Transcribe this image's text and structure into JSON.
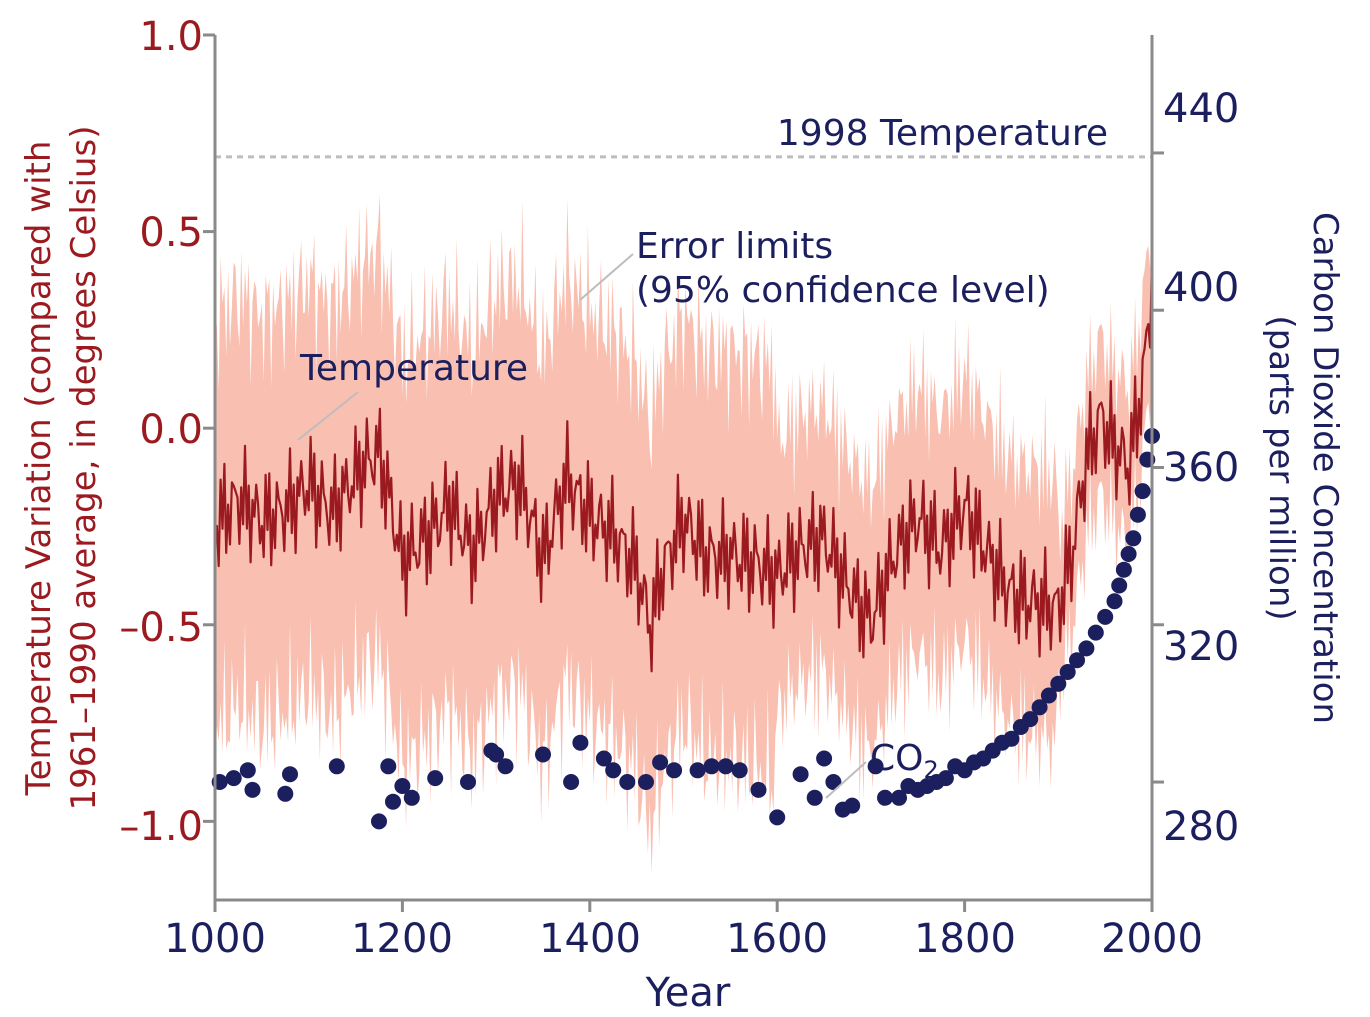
{
  "chart_data": {
    "type": "line",
    "xlabel": "Year",
    "ylabel_left_line1": "Temperature Variation (compared with",
    "ylabel_left_line2": "1961–1990 average, in degrees Celsius)",
    "ylabel_right_line1": "Carbon Dioxide Concentration",
    "ylabel_right_line2": "(parts per million)",
    "xlim": [
      1000,
      2000
    ],
    "ylim_left": [
      -1.2,
      1.0
    ],
    "ylim_right": [
      250,
      470
    ],
    "x_ticks": [
      "1000",
      "1200",
      "1400",
      "1600",
      "1800",
      "2000"
    ],
    "y_ticks_left": [
      "1.0",
      "0.5",
      "0.0",
      "–0.5",
      "–1.0"
    ],
    "y_ticks_right": [
      "440",
      "400",
      "360",
      "320",
      "280"
    ],
    "reference_line": {
      "label": "1998 Temperature",
      "value": 0.69
    },
    "annotations": {
      "error_line1": "Error limits",
      "error_line2": "(95% confidence level)",
      "temperature": "Temperature",
      "co2_main": "CO",
      "co2_sub": "2"
    },
    "colors": {
      "temperature_line": "#9b1a1f",
      "error_band": "#f9bfb1",
      "co2_points": "#1c1f5e",
      "axis": "#8a8a8a",
      "reference_line": "#bdbdbd"
    },
    "series": [
      {
        "name": "Temperature",
        "x": [
          1000,
          1025,
          1050,
          1075,
          1100,
          1125,
          1150,
          1175,
          1200,
          1225,
          1250,
          1275,
          1300,
          1325,
          1350,
          1375,
          1400,
          1425,
          1450,
          1465,
          1475,
          1500,
          1525,
          1550,
          1575,
          1600,
          1625,
          1650,
          1675,
          1700,
          1725,
          1750,
          1775,
          1800,
          1825,
          1850,
          1875,
          1900,
          1915,
          1930,
          1945,
          1960,
          1975,
          1990,
          1998,
          2000
        ],
        "y": [
          -0.28,
          -0.22,
          -0.25,
          -0.18,
          -0.1,
          -0.2,
          -0.15,
          -0.1,
          -0.35,
          -0.25,
          -0.15,
          -0.3,
          -0.2,
          -0.18,
          -0.35,
          -0.1,
          -0.18,
          -0.25,
          -0.38,
          -0.55,
          -0.42,
          -0.25,
          -0.3,
          -0.28,
          -0.32,
          -0.4,
          -0.35,
          -0.3,
          -0.38,
          -0.45,
          -0.3,
          -0.25,
          -0.35,
          -0.22,
          -0.3,
          -0.38,
          -0.42,
          -0.48,
          -0.35,
          -0.12,
          0.0,
          -0.05,
          -0.08,
          0.15,
          0.35,
          0.45
        ]
      },
      {
        "name": "CO2",
        "x": [
          1005,
          1020,
          1035,
          1040,
          1075,
          1080,
          1130,
          1175,
          1185,
          1190,
          1200,
          1210,
          1235,
          1270,
          1295,
          1300,
          1310,
          1350,
          1380,
          1390,
          1415,
          1425,
          1440,
          1460,
          1475,
          1490,
          1515,
          1530,
          1545,
          1560,
          1580,
          1600,
          1625,
          1640,
          1650,
          1660,
          1670,
          1680,
          1705,
          1715,
          1730,
          1740,
          1750,
          1760,
          1770,
          1780,
          1790,
          1800,
          1810,
          1820,
          1830,
          1840,
          1850,
          1860,
          1870,
          1880,
          1890,
          1900,
          1910,
          1920,
          1930,
          1940,
          1950,
          1960,
          1965,
          1970,
          1975,
          1980,
          1985,
          1990,
          1995,
          2000
        ],
        "y": [
          280,
          281,
          283,
          278,
          277,
          282,
          284,
          270,
          284,
          275,
          279,
          276,
          281,
          280,
          288,
          287,
          284,
          287,
          280,
          290,
          286,
          283,
          280,
          280,
          285,
          283,
          283,
          284,
          284,
          283,
          278,
          271,
          282,
          276,
          286,
          280,
          273,
          274,
          284,
          276,
          276,
          279,
          278,
          279,
          280,
          281,
          284,
          283,
          285,
          286,
          288,
          290,
          291,
          294,
          296,
          299,
          302,
          305,
          308,
          311,
          314,
          318,
          322,
          326,
          330,
          334,
          338,
          342,
          348,
          354,
          362,
          368
        ]
      }
    ]
  }
}
